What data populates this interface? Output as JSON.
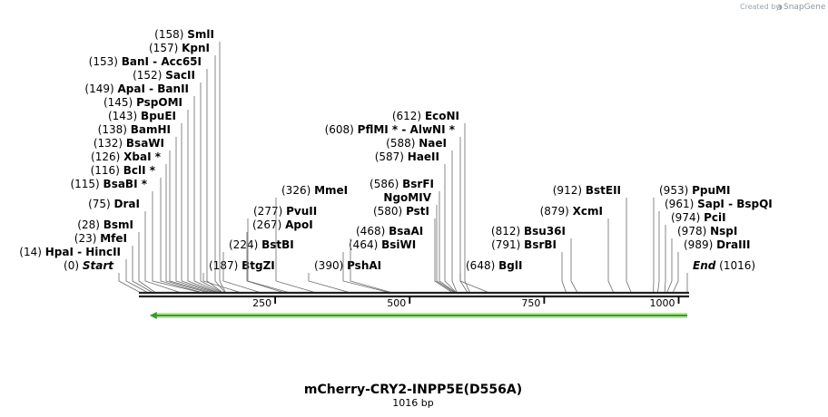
{
  "credit": {
    "prefix": "Created by",
    "brand": "SnapGene"
  },
  "map": {
    "title": "mCherry-CRY2-INPP5E(D556A)",
    "length_label": "1016 bp",
    "total_bp": 1016,
    "ticks": [
      {
        "bp": 250,
        "label": "250"
      },
      {
        "bp": 500,
        "label": "500"
      },
      {
        "bp": 750,
        "label": "750"
      },
      {
        "bp": 1000,
        "label": "1000"
      }
    ],
    "feature": {
      "name": "arrow-feature",
      "start_bp": 160,
      "end_bp": 1016,
      "direction": "reverse",
      "color": "#3a9a2a",
      "glow": "#b8e6a0"
    },
    "sites": [
      {
        "pos": "(0)",
        "name": "Start",
        "style": "ital",
        "bp": 0
      },
      {
        "pos": "(14)",
        "name": "HpaI  -  HincII",
        "bp": 14
      },
      {
        "pos": "(23)",
        "name": "MfeI",
        "bp": 23
      },
      {
        "pos": "(28)",
        "name": "BsmI",
        "bp": 28
      },
      {
        "pos": "(75)",
        "name": "DraI",
        "bp": 75
      },
      {
        "pos": "(115)",
        "name": "BsaBI *",
        "bp": 115
      },
      {
        "pos": "(116)",
        "name": "BclI *",
        "bp": 116
      },
      {
        "pos": "(126)",
        "name": "XbaI *",
        "bp": 126
      },
      {
        "pos": "(132)",
        "name": "BsaWI",
        "bp": 132
      },
      {
        "pos": "(138)",
        "name": "BamHI",
        "bp": 138
      },
      {
        "pos": "(143)",
        "name": "BpuEI",
        "bp": 143
      },
      {
        "pos": "(145)",
        "name": "PspOMI",
        "bp": 145
      },
      {
        "pos": "(149)",
        "name": "ApaI  -  BanII",
        "bp": 149
      },
      {
        "pos": "(152)",
        "name": "SacII",
        "bp": 152
      },
      {
        "pos": "(153)",
        "name": "BanI  -  Acc65I",
        "bp": 153
      },
      {
        "pos": "(157)",
        "name": "KpnI",
        "bp": 157
      },
      {
        "pos": "(158)",
        "name": "SmlI",
        "bp": 158
      },
      {
        "pos": "(187)",
        "name": "BtgZI",
        "bp": 187
      },
      {
        "pos": "(224)",
        "name": "BstBI",
        "bp": 224
      },
      {
        "pos": "(267)",
        "name": "ApoI",
        "bp": 267
      },
      {
        "pos": "(277)",
        "name": "PvuII",
        "bp": 277
      },
      {
        "pos": "(326)",
        "name": "MmeI",
        "bp": 326
      },
      {
        "pos": "(390)",
        "name": "PshAI",
        "bp": 390
      },
      {
        "pos": "(464)",
        "name": "BsiWI",
        "bp": 464
      },
      {
        "pos": "(468)",
        "name": "BsaAI",
        "bp": 468
      },
      {
        "pos": "(580)",
        "name": "PstI",
        "bp": 580
      },
      {
        "pos": "",
        "name": "NgoMIV",
        "bp": 584
      },
      {
        "pos": "(586)",
        "name": "BsrFI",
        "bp": 586
      },
      {
        "pos": "(587)",
        "name": "HaeII",
        "bp": 587
      },
      {
        "pos": "(588)",
        "name": "NaeI",
        "bp": 588
      },
      {
        "pos": "(608)",
        "name": "PflMI *  -  AlwNI *",
        "bp": 608
      },
      {
        "pos": "(612)",
        "name": "EcoNI",
        "bp": 612
      },
      {
        "pos": "(648)",
        "name": "BglI",
        "bp": 648
      },
      {
        "pos": "(791)",
        "name": "BsrBI",
        "bp": 791
      },
      {
        "pos": "(812)",
        "name": "Bsu36I",
        "bp": 812
      },
      {
        "pos": "(879)",
        "name": "XcmI",
        "bp": 879
      },
      {
        "pos": "(912)",
        "name": "BstEII",
        "bp": 912
      },
      {
        "pos": "(953)",
        "name": "PpuMI",
        "bp": 953
      },
      {
        "pos": "(961)",
        "name": "SapI  -  BspQI",
        "bp": 961
      },
      {
        "pos": "(974)",
        "name": "PciI",
        "bp": 974
      },
      {
        "pos": "(978)",
        "name": "NspI",
        "bp": 978
      },
      {
        "pos": "(989)",
        "name": "DraIII",
        "bp": 989
      },
      {
        "pos": "(1016)",
        "name": "End",
        "style": "ital",
        "bp": 1016
      }
    ]
  }
}
